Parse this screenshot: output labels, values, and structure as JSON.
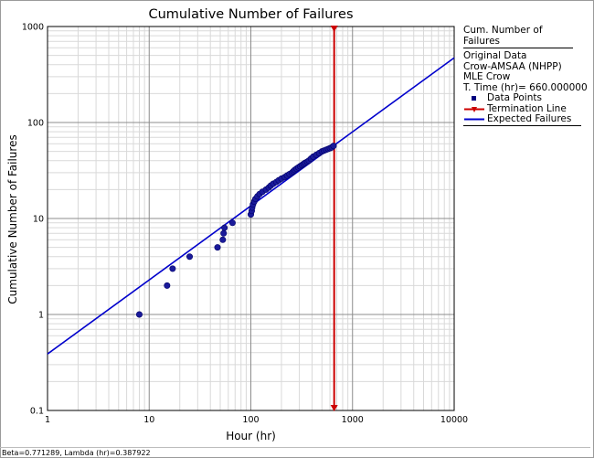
{
  "chart_data": {
    "type": "scatter",
    "title": "Cumulative Number of Failures",
    "xlabel": "Hour (hr)",
    "ylabel": "Cumulative Number of Failures",
    "xscale": "log",
    "yscale": "log",
    "xlim": [
      1,
      10000
    ],
    "ylim": [
      0.1,
      1000
    ],
    "x_ticks": [
      "1",
      "10",
      "100",
      "1000",
      "10000"
    ],
    "y_ticks": [
      "0.1",
      "1",
      "10",
      "100",
      "1000"
    ],
    "grid": true,
    "legend_position": "right",
    "legend": {
      "title": "Cum. Number of Failures",
      "info": [
        "Original Data",
        "Crow-AMSAA (NHPP)",
        "MLE Crow",
        "T. Time (hr)= 660.000000"
      ],
      "items": [
        {
          "label": "Data Points",
          "color": "#00007f"
        },
        {
          "label": "Termination Line",
          "color": "#cc0000"
        },
        {
          "label": "Expected Failures",
          "color": "#0000cc"
        }
      ]
    },
    "termination_time": 660,
    "series": [
      {
        "name": "Data Points",
        "x": [
          8,
          15,
          17,
          25,
          47,
          53,
          54,
          55,
          66,
          100,
          102,
          103,
          105,
          108,
          111,
          116,
          122,
          130,
          141,
          150,
          157,
          166,
          178,
          188,
          200,
          215,
          227,
          240,
          254,
          262,
          270,
          281,
          293,
          305,
          318,
          330,
          342,
          358,
          372,
          390,
          410,
          440,
          470,
          500,
          525,
          550,
          575,
          600,
          625,
          650
        ],
        "y": [
          1,
          2,
          3,
          4,
          5,
          6,
          7,
          8,
          9,
          11,
          12,
          13,
          14,
          15,
          16,
          17,
          18,
          19,
          20,
          21,
          22,
          23,
          24,
          25,
          26,
          27,
          28,
          29,
          30,
          31,
          32,
          33,
          34,
          35,
          36,
          37,
          38,
          39,
          40,
          42,
          44,
          46,
          48,
          50,
          51,
          52,
          53,
          54,
          55,
          57
        ]
      },
      {
        "name": "Expected Failures",
        "beta": 0.771289,
        "lambda": 0.387922
      }
    ]
  },
  "status_text": "Beta=0.771289, Lambda (hr)=0.387922"
}
